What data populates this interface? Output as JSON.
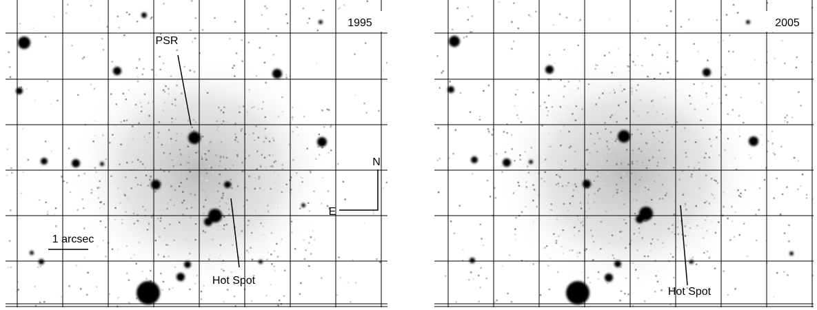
{
  "panels": [
    {
      "year": "1995",
      "labels": {
        "psr": "PSR",
        "hot_spot": "Hot Spot",
        "scale": "1 arcsec",
        "north": "N",
        "east": "E"
      }
    },
    {
      "year": "2005",
      "labels": {
        "hot_spot": "Hot Spot"
      }
    }
  ]
}
